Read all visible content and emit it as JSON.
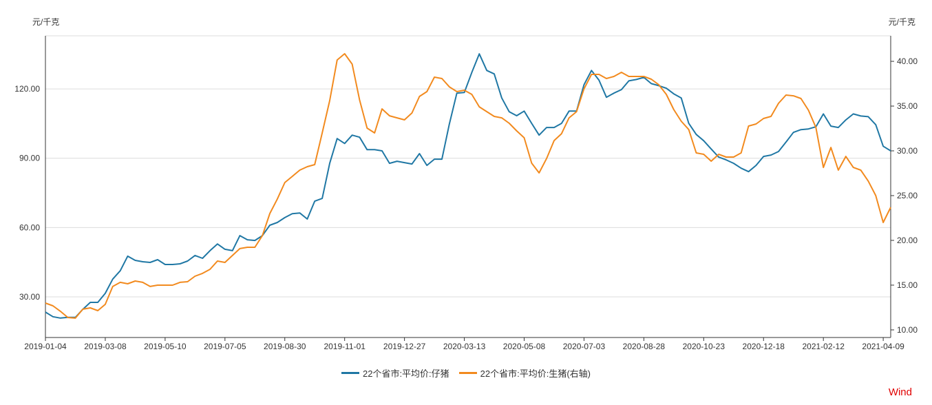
{
  "chart_data": {
    "type": "line",
    "left_unit": "元/千克",
    "right_unit": "元/千克",
    "x_ticks": [
      {
        "index": 0,
        "label": "2019-01-04"
      },
      {
        "index": 8,
        "label": "2019-03-08"
      },
      {
        "index": 16,
        "label": "2019-05-10"
      },
      {
        "index": 24,
        "label": "2019-07-05"
      },
      {
        "index": 32,
        "label": "2019-08-30"
      },
      {
        "index": 40,
        "label": "2019-11-01"
      },
      {
        "index": 48,
        "label": "2019-12-27"
      },
      {
        "index": 56,
        "label": "2020-03-13"
      },
      {
        "index": 64,
        "label": "2020-05-08"
      },
      {
        "index": 72,
        "label": "2020-07-03"
      },
      {
        "index": 80,
        "label": "2020-08-28"
      },
      {
        "index": 88,
        "label": "2020-10-23"
      },
      {
        "index": 96,
        "label": "2020-12-18"
      },
      {
        "index": 104,
        "label": "2021-02-12"
      },
      {
        "index": 112,
        "label": "2021-04-09"
      }
    ],
    "x_range": [
      0,
      113
    ],
    "left_axis": {
      "range": [
        12.4,
        143
      ],
      "ticks": [
        30,
        60,
        90,
        120
      ],
      "tick_labels": [
        "30.00",
        "60.00",
        "90.00",
        "120.00"
      ]
    },
    "right_axis": {
      "range": [
        9.15,
        42.85
      ],
      "ticks": [
        10,
        15,
        20,
        25,
        30,
        35,
        40
      ],
      "tick_labels": [
        "10.00",
        "15.00",
        "20.00",
        "25.00",
        "30.00",
        "35.00",
        "40.00"
      ]
    },
    "grid": true,
    "legend_position": "bottom",
    "series": [
      {
        "name": "22个省市:平均价:仔猪",
        "axis": "left",
        "color": "#1f77a4",
        "values": [
          23.4,
          21.4,
          20.8,
          21.1,
          21.1,
          24.6,
          27.6,
          27.6,
          31.5,
          37.7,
          41.3,
          47.6,
          45.8,
          45.2,
          44.9,
          46.1,
          44.0,
          44.0,
          44.3,
          45.5,
          47.9,
          46.7,
          50.0,
          52.9,
          50.6,
          50.0,
          56.5,
          54.7,
          54.4,
          56.5,
          61.0,
          62.2,
          64.3,
          66.0,
          66.3,
          63.7,
          71.4,
          72.6,
          87.8,
          98.5,
          96.4,
          100.0,
          99.1,
          93.7,
          93.7,
          93.2,
          87.8,
          88.7,
          88.1,
          87.5,
          92.0,
          86.9,
          89.6,
          89.6,
          104.8,
          118.2,
          118.5,
          127.1,
          135.2,
          128.0,
          126.5,
          116.1,
          110.1,
          108.4,
          110.4,
          105.1,
          100.0,
          103.3,
          103.3,
          105.1,
          110.4,
          110.4,
          121.8,
          128.0,
          123.8,
          116.4,
          118.2,
          119.7,
          123.5,
          124.1,
          125.0,
          122.3,
          121.4,
          120.3,
          117.9,
          116.1,
          105.1,
          100.3,
          97.6,
          94.0,
          90.5,
          89.3,
          87.8,
          85.7,
          84.2,
          86.9,
          90.8,
          91.4,
          92.9,
          97.0,
          101.2,
          102.4,
          102.7,
          103.6,
          109.2,
          103.9,
          103.3,
          106.6,
          109.2,
          108.3,
          108.0,
          104.5,
          95.2,
          93.2
        ]
      },
      {
        "name": "22个省市:平均价:生猪(右轴)",
        "axis": "right",
        "color": "#f28a1e",
        "values": [
          13.0,
          12.69,
          12.08,
          11.38,
          11.31,
          12.31,
          12.46,
          12.15,
          12.85,
          14.85,
          15.31,
          15.15,
          15.46,
          15.31,
          14.85,
          15.0,
          15.0,
          15.0,
          15.31,
          15.38,
          16.0,
          16.31,
          16.77,
          17.69,
          17.54,
          18.31,
          19.08,
          19.23,
          19.23,
          20.54,
          23.0,
          24.62,
          26.46,
          27.15,
          27.85,
          28.23,
          28.46,
          32.0,
          35.62,
          40.15,
          40.85,
          39.69,
          35.69,
          32.54,
          32.0,
          34.69,
          33.92,
          33.69,
          33.46,
          34.23,
          36.08,
          36.62,
          38.23,
          38.08,
          37.15,
          36.62,
          36.77,
          36.31,
          34.92,
          34.38,
          33.85,
          33.69,
          33.08,
          32.23,
          31.46,
          28.62,
          27.54,
          29.15,
          31.15,
          31.92,
          33.69,
          34.38,
          36.92,
          38.54,
          38.54,
          38.08,
          38.31,
          38.77,
          38.31,
          38.31,
          38.31,
          38.0,
          37.38,
          36.31,
          34.62,
          33.31,
          32.38,
          29.77,
          29.62,
          28.85,
          29.62,
          29.31,
          29.31,
          29.77,
          32.77,
          33.0,
          33.62,
          33.85,
          35.31,
          36.23,
          36.15,
          35.85,
          34.54,
          32.62,
          28.15,
          30.38,
          27.85,
          29.38,
          28.15,
          27.85,
          26.62,
          25.0,
          22.0,
          23.69
        ]
      }
    ]
  },
  "source_label": "Wind"
}
